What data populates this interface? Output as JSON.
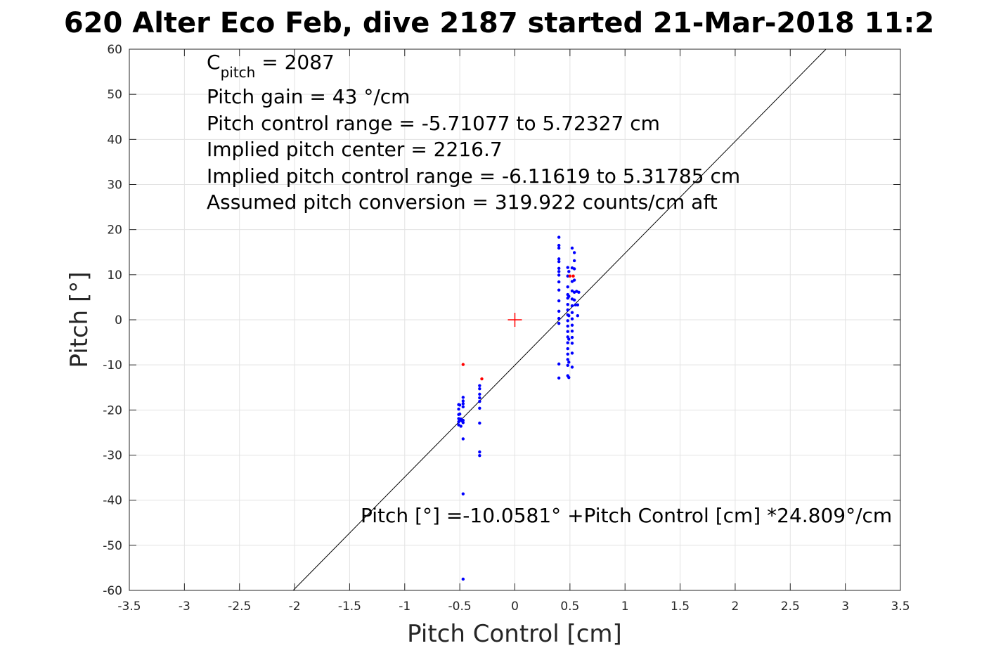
{
  "chart_data": {
    "type": "scatter",
    "title": "620 Alter Eco Feb, dive 2187 started 21-Mar-2018 11:2",
    "xlabel": "Pitch Control [cm]",
    "ylabel": "Pitch [°]",
    "xlim": [
      -3.5,
      3.5
    ],
    "ylim": [
      -60,
      60
    ],
    "xticks": [
      -3.5,
      -3,
      -2.5,
      -2,
      -1.5,
      -1,
      -0.5,
      0,
      0.5,
      1,
      1.5,
      2,
      2.5,
      3,
      3.5
    ],
    "yticks": [
      -60,
      -50,
      -40,
      -30,
      -20,
      -10,
      0,
      10,
      20,
      30,
      40,
      50,
      60
    ],
    "xtick_labels": [
      "-3.5",
      "-3",
      "-2.5",
      "-2",
      "-1.5",
      "-1",
      "-0.5",
      "0",
      "0.5",
      "1",
      "1.5",
      "2",
      "2.5",
      "3",
      "3.5"
    ],
    "ytick_labels": [
      "-60",
      "-50",
      "-40",
      "-30",
      "-20",
      "-10",
      "0",
      "10",
      "20",
      "30",
      "40",
      "50",
      "60"
    ],
    "grid": true,
    "annotations": {
      "cpitch_symbol": "C",
      "cpitch_subscript": "pitch",
      "cpitch_value": " = 2087",
      "lines": [
        "Pitch gain = 43 °/cm",
        "Pitch control range = -5.71077 to 5.72327 cm",
        "Implied pitch center = 2216.7",
        "Implied pitch control range = -6.11619 to 5.31785 cm",
        "Assumed pitch conversion = 319.922 counts/cm aft"
      ],
      "fit_equation": "Pitch [°] =-10.0581° +Pitch Control [cm] *24.809°/cm"
    },
    "fit_line": {
      "intercept": -10.0581,
      "slope": 24.809,
      "color": "#000000"
    },
    "center_marker": {
      "x": 0,
      "y": 0,
      "color": "#ff0000"
    },
    "series": [
      {
        "color": "#0000ff",
        "points": [
          [
            0.4,
            18.3
          ],
          [
            0.4,
            16.5
          ],
          [
            0.4,
            15.9
          ],
          [
            0.4,
            13.5
          ],
          [
            0.4,
            12.9
          ],
          [
            0.4,
            11.4
          ],
          [
            0.4,
            10.7
          ],
          [
            0.4,
            9.9
          ],
          [
            0.4,
            8.4
          ],
          [
            0.4,
            6.6
          ],
          [
            0.4,
            4.2
          ],
          [
            0.4,
            1.9
          ],
          [
            0.4,
            0.3
          ],
          [
            0.4,
            -0.8
          ],
          [
            0.4,
            -9.8
          ],
          [
            0.4,
            -12.9
          ],
          [
            0.48,
            11.6
          ],
          [
            0.48,
            9.7
          ],
          [
            0.48,
            7.3
          ],
          [
            0.48,
            5.6
          ],
          [
            0.48,
            4.8
          ],
          [
            0.48,
            3.4
          ],
          [
            0.48,
            2.2
          ],
          [
            0.48,
            1.1
          ],
          [
            0.48,
            -0.2
          ],
          [
            0.48,
            -1.4
          ],
          [
            0.48,
            -2.6
          ],
          [
            0.48,
            -3.8
          ],
          [
            0.48,
            -5.1
          ],
          [
            0.48,
            -6.4
          ],
          [
            0.48,
            -7.6
          ],
          [
            0.48,
            -8.8
          ],
          [
            0.48,
            -10.1
          ],
          [
            0.48,
            -12.4
          ],
          [
            0.49,
            -12.8
          ],
          [
            0.49,
            10.7
          ],
          [
            0.49,
            5.2
          ],
          [
            0.49,
            0.9
          ],
          [
            0.49,
            -4.3
          ],
          [
            0.49,
            -9.4
          ],
          [
            0.52,
            15.9
          ],
          [
            0.52,
            11.5
          ],
          [
            0.52,
            8.5
          ],
          [
            0.52,
            6.4
          ],
          [
            0.52,
            4.6
          ],
          [
            0.52,
            3.1
          ],
          [
            0.52,
            1.6
          ],
          [
            0.52,
            0.2
          ],
          [
            0.52,
            -1.2
          ],
          [
            0.52,
            -2.5
          ],
          [
            0.52,
            -3.9
          ],
          [
            0.52,
            -5.2
          ],
          [
            0.52,
            -7.4
          ],
          [
            0.52,
            -10.5
          ],
          [
            0.54,
            14.9
          ],
          [
            0.54,
            13.1
          ],
          [
            0.54,
            11.3
          ],
          [
            0.54,
            8.8
          ],
          [
            0.54,
            6.1
          ],
          [
            0.54,
            4.4
          ],
          [
            0.55,
            3.3
          ],
          [
            0.56,
            6.3
          ],
          [
            0.57,
            3.3
          ],
          [
            0.57,
            0.9
          ],
          [
            0.58,
            6.1
          ],
          [
            -0.51,
            -18.8
          ],
          [
            -0.51,
            -19.8
          ],
          [
            -0.51,
            -21.0
          ],
          [
            -0.51,
            -21.9
          ],
          [
            -0.51,
            -22.6
          ],
          [
            -0.51,
            -23.3
          ],
          [
            -0.5,
            -18.9
          ],
          [
            -0.5,
            -20.9
          ],
          [
            -0.5,
            -22.3
          ],
          [
            -0.49,
            -23.6
          ],
          [
            -0.49,
            -22.0
          ],
          [
            -0.48,
            -22.4
          ],
          [
            -0.47,
            -17.2
          ],
          [
            -0.47,
            -18.0
          ],
          [
            -0.47,
            -18.6
          ],
          [
            -0.47,
            -19.3
          ],
          [
            -0.47,
            -22.3
          ],
          [
            -0.47,
            -22.8
          ],
          [
            -0.47,
            -26.4
          ],
          [
            -0.47,
            -38.6
          ],
          [
            -0.47,
            -57.5
          ],
          [
            -0.32,
            -14.6
          ],
          [
            -0.32,
            -15.3
          ],
          [
            -0.32,
            -16.5
          ],
          [
            -0.32,
            -17.3
          ],
          [
            -0.32,
            -18.1
          ],
          [
            -0.32,
            -19.6
          ],
          [
            -0.32,
            -22.9
          ],
          [
            -0.32,
            -29.3
          ],
          [
            -0.32,
            -30.1
          ]
        ]
      },
      {
        "color": "#ff0000",
        "points": [
          [
            -0.47,
            -9.9
          ],
          [
            -0.3,
            -13.1
          ],
          [
            0.5,
            9.7
          ],
          [
            0.53,
            9.7
          ]
        ]
      }
    ]
  }
}
